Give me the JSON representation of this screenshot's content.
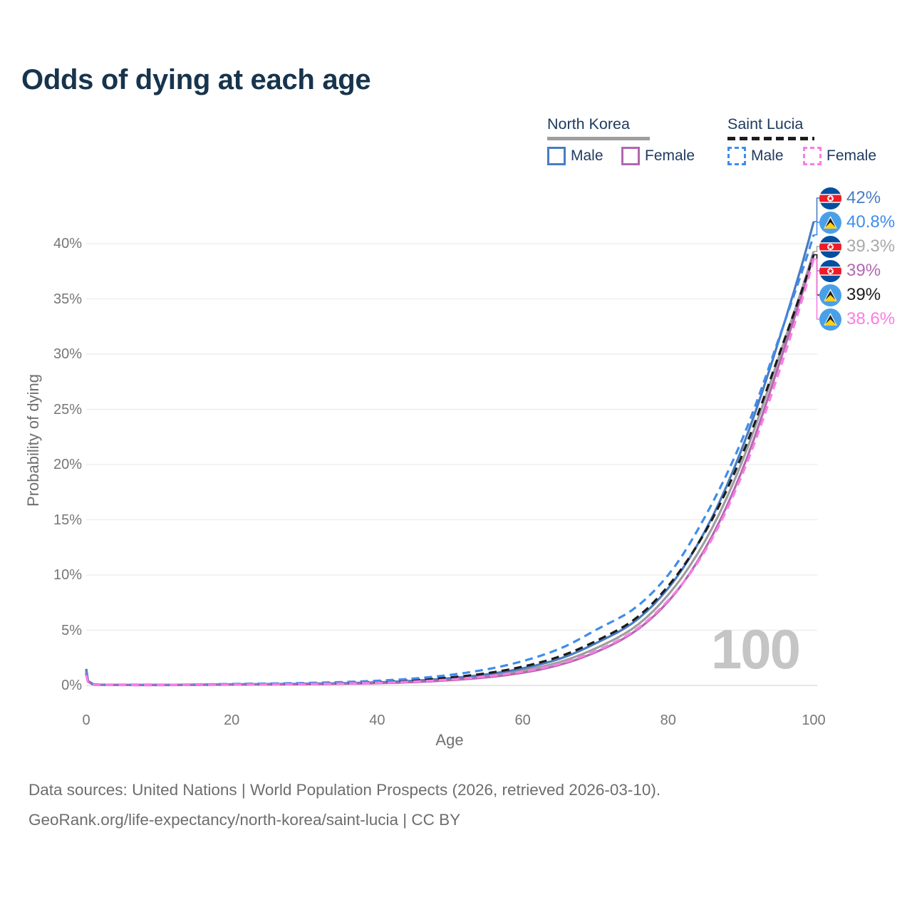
{
  "title": "Odds of dying at each age",
  "watermark": "100",
  "footer": {
    "line1": "Data sources: United Nations | World Population Prospects (2026, retrieved 2026-03-10).",
    "line2": "GeoRank.org/life-expectancy/north-korea/saint-lucia | CC BY"
  },
  "legend": {
    "groups": [
      {
        "title": "North Korea",
        "underline_color": "#9e9e9e",
        "underline_style": "solid",
        "items": [
          {
            "label": "Male",
            "color": "#4a7cc0",
            "dashed": false
          },
          {
            "label": "Female",
            "color": "#b267b0",
            "dashed": false
          }
        ]
      },
      {
        "title": "Saint Lucia",
        "underline_color": "#1c1c1c",
        "underline_style": "dashed",
        "items": [
          {
            "label": "Male",
            "color": "#3f8ceb",
            "dashed": true
          },
          {
            "label": "Female",
            "color": "#fb7ce4",
            "dashed": true
          }
        ]
      }
    ]
  },
  "chart_data": {
    "type": "line",
    "title": "Odds of dying at each age",
    "xlabel": "Age",
    "ylabel": "Probability of dying",
    "xlim": [
      0,
      100
    ],
    "ylim_percent": [
      0,
      43
    ],
    "grid": true,
    "x_ticks": [
      0,
      20,
      40,
      60,
      80,
      100
    ],
    "y_ticks_percent": [
      0,
      5,
      10,
      15,
      20,
      25,
      30,
      35,
      40
    ],
    "ages": [
      0,
      1,
      5,
      10,
      15,
      20,
      25,
      30,
      35,
      40,
      45,
      50,
      55,
      60,
      65,
      70,
      75,
      80,
      85,
      90,
      95,
      100
    ],
    "series": [
      {
        "key": "nk_total",
        "name": "North Korea Both sexes",
        "color": "#9e9e9e",
        "dashed": false,
        "values": [
          1.4,
          0.09,
          0.05,
          0.04,
          0.06,
          0.09,
          0.11,
          0.13,
          0.18,
          0.24,
          0.36,
          0.56,
          0.86,
          1.35,
          2.1,
          3.35,
          5.1,
          8.2,
          13.0,
          20.0,
          29.3,
          39.3
        ]
      },
      {
        "key": "nk_male",
        "name": "North Korea Male",
        "color": "#4a7cc0",
        "dashed": false,
        "values": [
          1.5,
          0.1,
          0.05,
          0.05,
          0.07,
          0.1,
          0.12,
          0.15,
          0.2,
          0.28,
          0.42,
          0.65,
          1.0,
          1.55,
          2.4,
          3.8,
          5.6,
          8.8,
          13.9,
          21.2,
          30.8,
          42.0
        ]
      },
      {
        "key": "nk_female",
        "name": "North Korea Female",
        "color": "#b267b0",
        "dashed": false,
        "values": [
          1.3,
          0.08,
          0.04,
          0.03,
          0.05,
          0.07,
          0.09,
          0.11,
          0.15,
          0.2,
          0.3,
          0.47,
          0.73,
          1.15,
          1.85,
          3.0,
          4.7,
          7.6,
          12.3,
          19.2,
          28.6,
          39.0
        ]
      },
      {
        "key": "sl_total",
        "name": "Saint Lucia Both sexes",
        "color": "#1c1c1c",
        "dashed": true,
        "values": [
          1.05,
          0.07,
          0.04,
          0.04,
          0.06,
          0.1,
          0.13,
          0.17,
          0.23,
          0.32,
          0.48,
          0.72,
          1.1,
          1.7,
          2.6,
          4.0,
          5.8,
          9.0,
          13.8,
          20.6,
          29.5,
          39.0
        ]
      },
      {
        "key": "sl_male",
        "name": "Saint Lucia Male",
        "color": "#3f8ceb",
        "dashed": true,
        "values": [
          1.15,
          0.08,
          0.04,
          0.05,
          0.08,
          0.13,
          0.17,
          0.22,
          0.3,
          0.42,
          0.62,
          0.95,
          1.45,
          2.2,
          3.3,
          5.0,
          6.8,
          10.0,
          15.2,
          22.0,
          31.0,
          40.8
        ]
      },
      {
        "key": "sl_female",
        "name": "Saint Lucia Female",
        "color": "#fb7ce4",
        "dashed": true,
        "values": [
          0.95,
          0.06,
          0.03,
          0.03,
          0.05,
          0.07,
          0.1,
          0.12,
          0.17,
          0.23,
          0.35,
          0.53,
          0.82,
          1.25,
          1.95,
          3.1,
          4.8,
          7.7,
          12.1,
          18.8,
          27.9,
          38.6
        ]
      }
    ],
    "end_labels": [
      {
        "value": "42%",
        "flag": "north-korea",
        "color": "#4a7cc0",
        "series_index": 1
      },
      {
        "value": "40.8%",
        "flag": "saint-lucia",
        "color": "#3f8ceb",
        "series_index": 4
      },
      {
        "value": "39.3%",
        "flag": "north-korea",
        "color": "#a9a9a9",
        "series_index": 0
      },
      {
        "value": "39%",
        "flag": "north-korea",
        "color": "#b267b0",
        "series_index": 2
      },
      {
        "value": "39%",
        "flag": "saint-lucia",
        "color": "#1c1c1c",
        "series_index": 3
      },
      {
        "value": "38.6%",
        "flag": "saint-lucia",
        "color": "#fb7ce4",
        "series_index": 5
      }
    ],
    "legend_position": "top-right"
  }
}
